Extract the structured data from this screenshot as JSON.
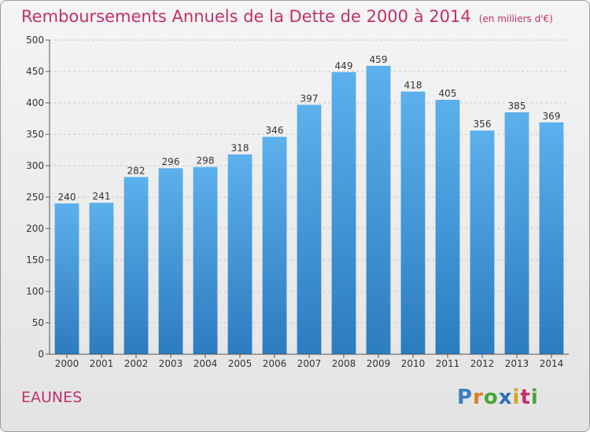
{
  "title": "Remboursements Annuels de la Dette de 2000 à 2014",
  "unit": "(en milliers d'€)",
  "commune": "EAUNES",
  "logo": {
    "letters": [
      "P",
      "r",
      "o",
      "x",
      "i",
      "t",
      "i"
    ],
    "colors": [
      "#3a7ec2",
      "#e07a1f",
      "#4aa53a",
      "#2f6fb8",
      "#d9a520",
      "#c0306a",
      "#4aa53a"
    ]
  },
  "colors": {
    "bar": "#3d93d8",
    "title": "#c0306a"
  },
  "chart_data": {
    "type": "bar",
    "title": "Remboursements Annuels de la Dette de 2000 à 2014",
    "xlabel": "",
    "ylabel": "",
    "categories": [
      "2000",
      "2001",
      "2002",
      "2003",
      "2004",
      "2005",
      "2006",
      "2007",
      "2008",
      "2009",
      "2010",
      "2011",
      "2012",
      "2013",
      "2014"
    ],
    "values": [
      240,
      241,
      282,
      296,
      298,
      318,
      346,
      397,
      449,
      459,
      418,
      405,
      356,
      385,
      369
    ],
    "ylim": [
      0,
      500
    ],
    "yticks": [
      0,
      50,
      100,
      150,
      200,
      250,
      300,
      350,
      400,
      450,
      500
    ],
    "grid": true,
    "legend": "none"
  }
}
